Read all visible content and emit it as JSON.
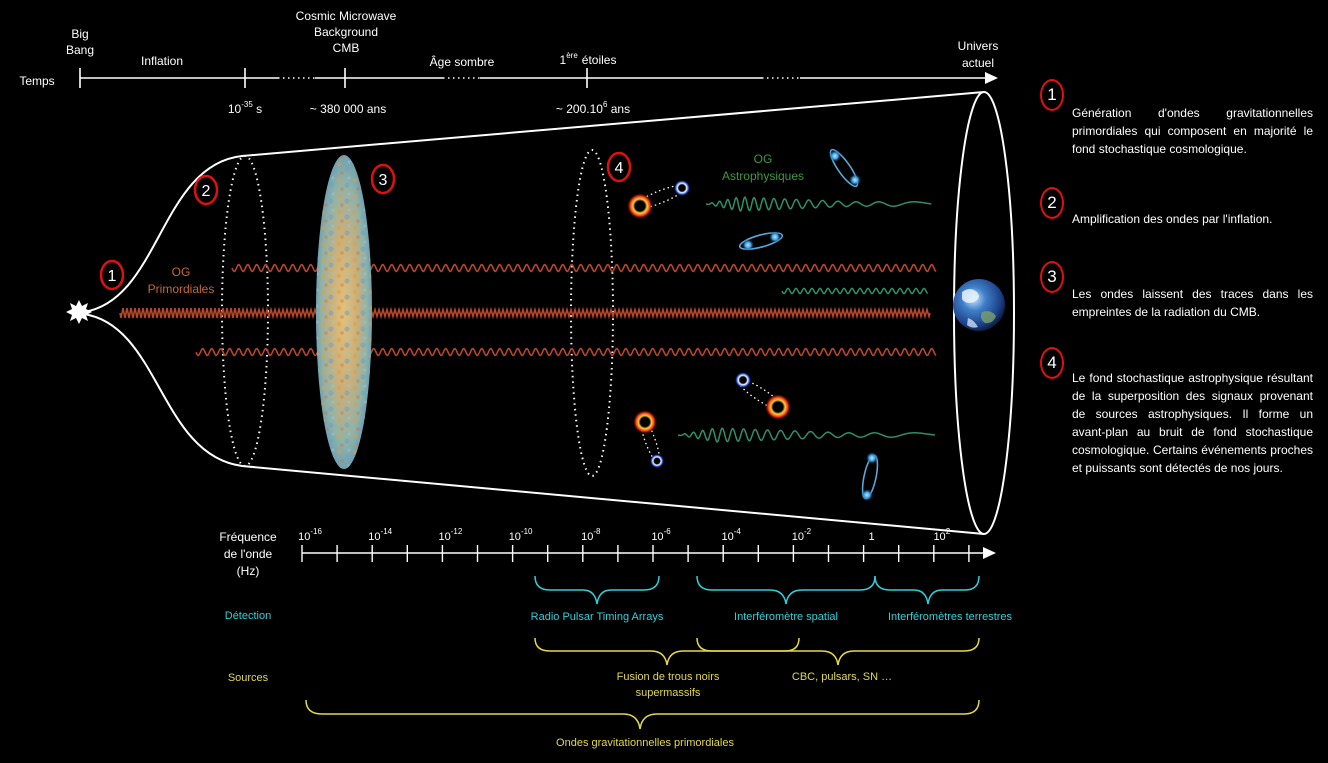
{
  "timeline": {
    "temps": "Temps",
    "big_bang_1": "Big",
    "big_bang_2": "Bang",
    "inflation": "Inflation",
    "cmb_1": "Cosmic Microwave",
    "cmb_2": "Background",
    "cmb_3": "CMB",
    "age_sombre": "Âge sombre",
    "etoiles_pre": "1",
    "etoiles_sup": "ère",
    "etoiles_post": "étoiles",
    "univers_1": "Univers",
    "univers_2": "actuel",
    "t1_base": "10",
    "t1_exp": "-35",
    "t1_unit": " s",
    "t2": "~ 380 000 ans",
    "t3_pre": "~ 200.10",
    "t3_exp": "6",
    "t3_post": " ans"
  },
  "diagram": {
    "og_primordiales_1": "OG",
    "og_primordiales_2": "Primordiales",
    "og_astro_1": "OG",
    "og_astro_2": "Astrophysiques",
    "badges": [
      "1",
      "2",
      "3",
      "4"
    ]
  },
  "frequency_axis": {
    "label_1": "Fréquence",
    "label_2": "de l'onde",
    "label_3": "(Hz)",
    "ticks": [
      {
        "base": "10",
        "exp": "-16"
      },
      {
        "base": "10",
        "exp": "-14"
      },
      {
        "base": "10",
        "exp": "-12"
      },
      {
        "base": "10",
        "exp": "-10"
      },
      {
        "base": "10",
        "exp": "-8"
      },
      {
        "base": "10",
        "exp": "-6"
      },
      {
        "base": "10",
        "exp": "-4"
      },
      {
        "base": "10",
        "exp": "-2"
      },
      {
        "base": "1",
        "exp": ""
      },
      {
        "base": "10",
        "exp": "2"
      }
    ]
  },
  "detection": {
    "label": "Détection",
    "pta": "Radio Pulsar Timing Arrays",
    "spatial": "Interféromètre spatial",
    "terrestres": "Interféromètres terrestres"
  },
  "sources": {
    "label": "Sources",
    "smbh_1": "Fusion de trous noirs",
    "smbh_2": "supermassifs",
    "cbc": "CBC, pulsars, SN …",
    "primordial": "Ondes gravitationnelles primordiales"
  },
  "notes": [
    {
      "number": "1",
      "text": "Génération d'ondes gravitationnelles primordiales qui composent en majorité le fond stochastique cosmologique."
    },
    {
      "number": "2",
      "text": "Amplification des ondes par l'inflation."
    },
    {
      "number": "3",
      "text": "Les ondes laissent des traces dans les empreintes de la radiation du CMB."
    },
    {
      "number": "4",
      "text": "Le fond stochastique astrophysique résultant de la superposition des signaux provenant de sources astrophysiques. Il forme un avant-plan au bruit de fond stochastique cosmologique. Certains événements proches et puissants sont détectés de nos jours."
    }
  ],
  "colors": {
    "background": "#000000",
    "primordial_wave": "#b5472a",
    "primordial_label": "#c8692e",
    "astro_wave": "#2f8f6a",
    "astro_label": "#3a9a3a",
    "detection": "#2fd0dc",
    "sources": "#e4d84a",
    "badge": "#e01010"
  }
}
